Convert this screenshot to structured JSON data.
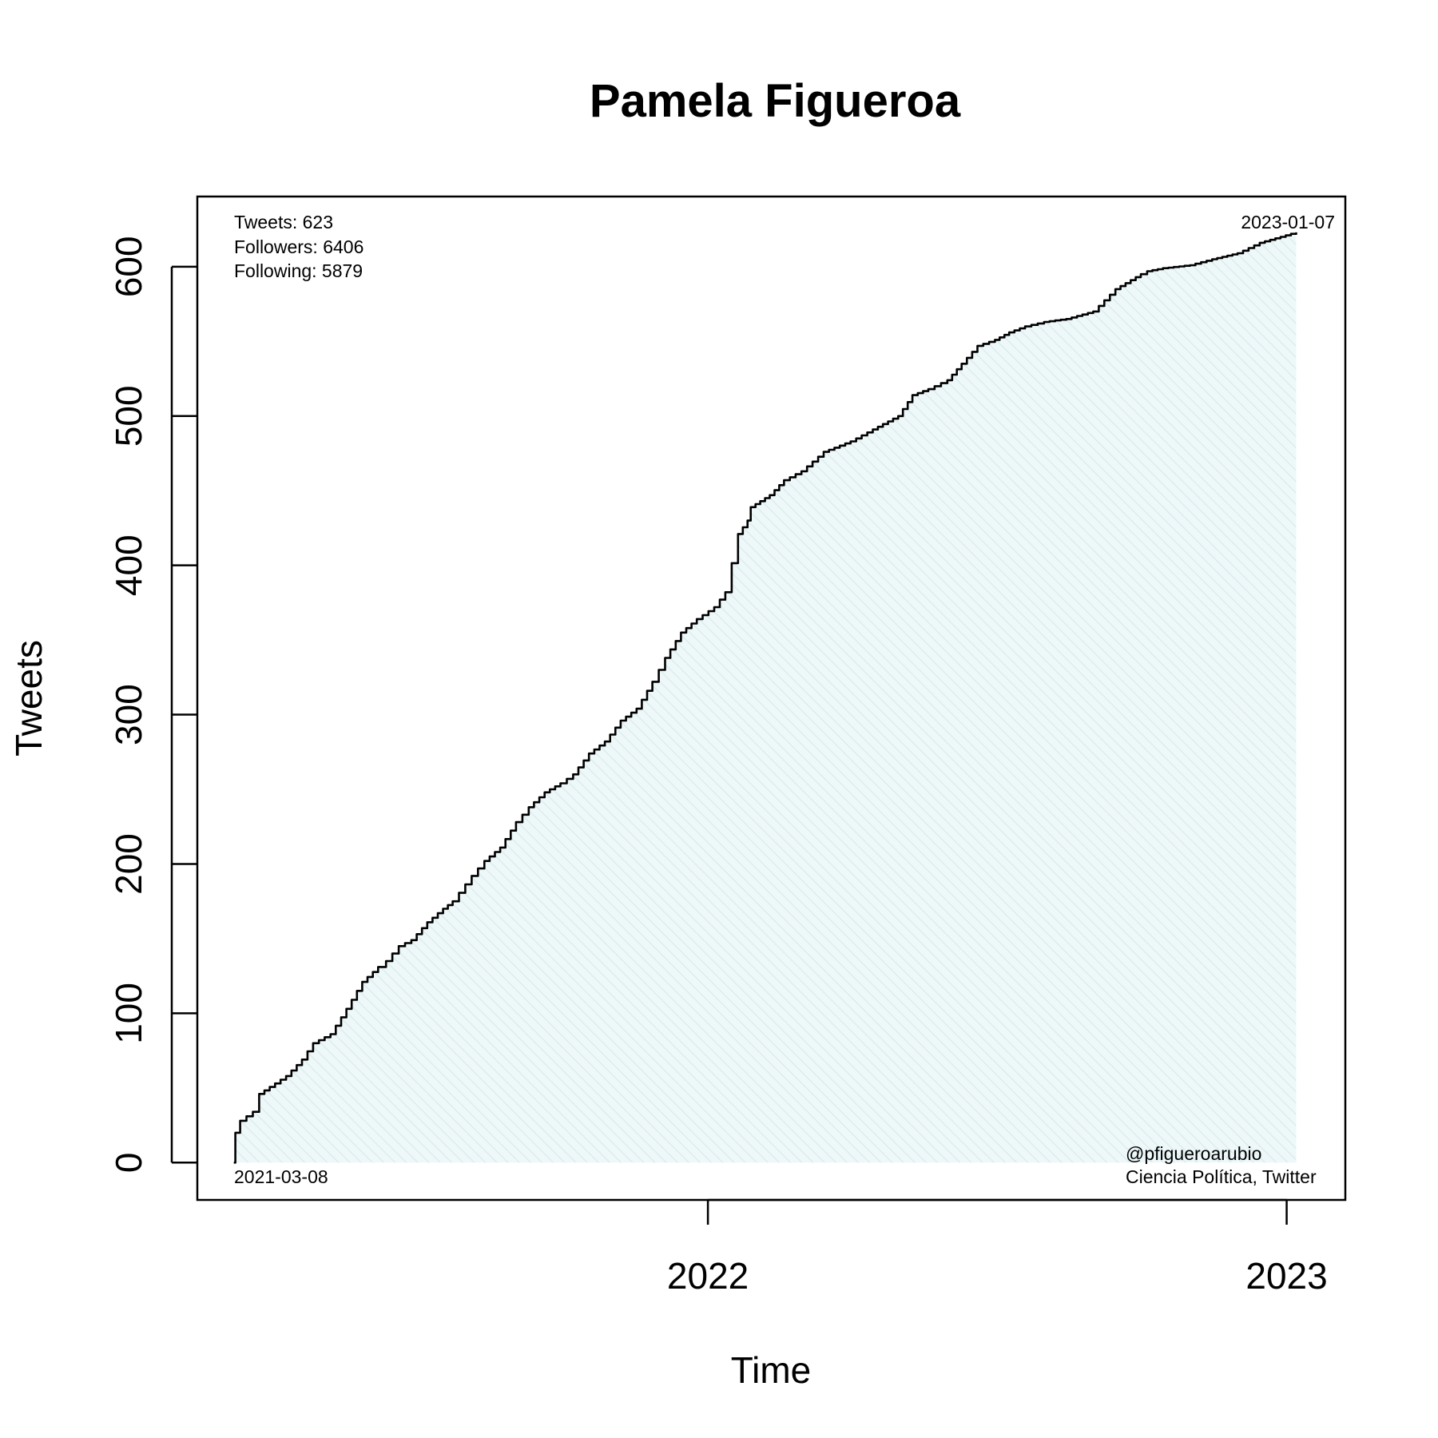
{
  "chart_data": {
    "type": "area",
    "title": "Pamela Figueroa",
    "xlabel": "Time",
    "ylabel": "Tweets",
    "x_ticks": [
      {
        "value": "2022-01-01",
        "label": "2022"
      },
      {
        "value": "2023-01-01",
        "label": "2023"
      }
    ],
    "y_ticks": [
      0,
      100,
      200,
      300,
      400,
      500,
      600
    ],
    "xlim": [
      "2021-02-13",
      "2023-02-07"
    ],
    "ylim": [
      -25,
      647
    ],
    "grid": false,
    "fill_color": "#ddf0f2",
    "line_color": "#000000",
    "series": [
      {
        "x": [
          "2021-03-08",
          "2021-03-09",
          "2021-03-12",
          "2021-03-20",
          "2021-03-24",
          "2021-04-03",
          "2021-04-10",
          "2021-04-20",
          "2021-04-27",
          "2021-05-08",
          "2021-05-18",
          "2021-05-28",
          "2021-06-07",
          "2021-06-12",
          "2021-06-20",
          "2021-06-28",
          "2021-07-08",
          "2021-07-18",
          "2021-07-24",
          "2021-08-05",
          "2021-08-13",
          "2021-08-23",
          "2021-09-02",
          "2021-09-10",
          "2021-09-20",
          "2021-09-30",
          "2021-10-08",
          "2021-10-18",
          "2021-10-28",
          "2021-11-07",
          "2021-11-17",
          "2021-11-27",
          "2021-12-05",
          "2021-12-15",
          "2021-12-25",
          "2022-01-05",
          "2022-01-12",
          "2022-01-20",
          "2022-01-26",
          "2022-01-28",
          "2022-02-03",
          "2022-02-09",
          "2022-02-18",
          "2022-03-01",
          "2022-03-15",
          "2022-04-01",
          "2022-04-15",
          "2022-05-01",
          "2022-05-10",
          "2022-05-20",
          "2022-06-01",
          "2022-06-10",
          "2022-06-20",
          "2022-07-01",
          "2022-07-10",
          "2022-07-20",
          "2022-08-01",
          "2022-08-15",
          "2022-09-01",
          "2022-09-15",
          "2022-10-01",
          "2022-10-05",
          "2022-10-15",
          "2022-11-01",
          "2022-11-15",
          "2022-12-01",
          "2022-12-15",
          "2023-01-07"
        ],
        "y": [
          0,
          20,
          28,
          34,
          46,
          53,
          58,
          69,
          80,
          86,
          103,
          121,
          131,
          135,
          145,
          149,
          161,
          170,
          175,
          192,
          202,
          211,
          228,
          238,
          248,
          254,
          260,
          274,
          282,
          296,
          304,
          322,
          338,
          355,
          364,
          372,
          382,
          421,
          430,
          439,
          443,
          447,
          457,
          463,
          476,
          483,
          491,
          500,
          514,
          518,
          524,
          535,
          547,
          551,
          556,
          560,
          563,
          565,
          570,
          585,
          595,
          597,
          599,
          601,
          605,
          609,
          616,
          623
        ]
      }
    ],
    "annotations": {
      "stats": [
        "Tweets: 623",
        "Followers: 6406",
        "Following: 5879"
      ],
      "start_date": "2021-03-08",
      "end_date": "2023-01-07",
      "credit": [
        "@pfigueroarubio",
        "Ciencia Política, Twitter"
      ]
    }
  }
}
